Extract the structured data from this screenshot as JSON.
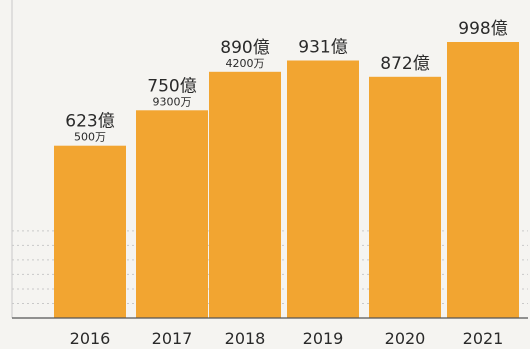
{
  "colors": {
    "bar": "#f2a531",
    "grid": "#c9c9c9",
    "axis": "#555555",
    "background": "#f5f4f1",
    "text": "#2a2a2a"
  },
  "chart_data": {
    "type": "bar",
    "title": "",
    "xlabel": "",
    "ylabel": "",
    "grid": true,
    "legend": "none",
    "ylim": [
      0,
      1100
    ],
    "categories": [
      "2016",
      "2017",
      "2018",
      "2019",
      "2020",
      "2021"
    ],
    "values": [
      623.05,
      750.93,
      890.42,
      931,
      872,
      998
    ],
    "labels": [
      {
        "main": "623億",
        "sub": "500万"
      },
      {
        "main": "750億",
        "sub": "9300万"
      },
      {
        "main": "890億",
        "sub": "4200万"
      },
      {
        "main": "931億",
        "sub": ""
      },
      {
        "main": "872億",
        "sub": ""
      },
      {
        "main": "998億",
        "sub": ""
      }
    ]
  }
}
